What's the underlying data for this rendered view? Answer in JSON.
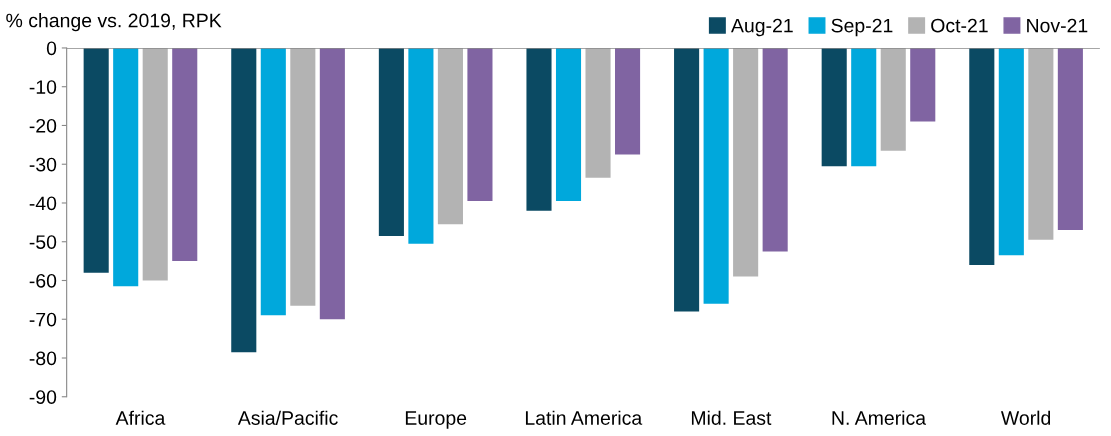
{
  "chart_data": {
    "type": "bar",
    "title": "% change vs. 2019, RPK",
    "categories": [
      "Africa",
      "Asia/Pacific",
      "Europe",
      "Latin America",
      "Mid. East",
      "N. America",
      "World"
    ],
    "series": [
      {
        "name": "Aug-21",
        "color": "#0b4a63",
        "values": [
          -58,
          -78.5,
          -48.5,
          -42,
          -68,
          -30.5,
          -56
        ]
      },
      {
        "name": "Sep-21",
        "color": "#00a8dc",
        "values": [
          -61.5,
          -69,
          -50.5,
          -39.5,
          -66,
          -30.5,
          -53.5
        ]
      },
      {
        "name": "Oct-21",
        "color": "#b3b3b3",
        "values": [
          -60,
          -66.5,
          -45.5,
          -33.5,
          -59,
          -26.5,
          -49.5
        ]
      },
      {
        "name": "Nov-21",
        "color": "#8064a2",
        "values": [
          -55,
          -70,
          -39.5,
          -27.5,
          -52.5,
          -19,
          -47
        ]
      }
    ],
    "ylim": [
      -90,
      0
    ],
    "yticks": [
      0,
      -10,
      -20,
      -30,
      -40,
      -50,
      -60,
      -70,
      -80,
      -90
    ],
    "grid": false,
    "legend": "top right"
  }
}
